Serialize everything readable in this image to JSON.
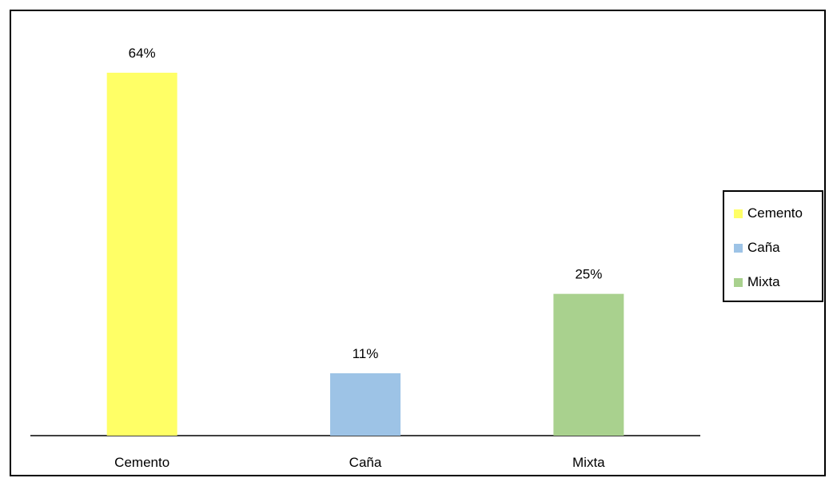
{
  "chart_data": {
    "type": "bar",
    "categories": [
      "Cemento",
      "Caña",
      "Mixta"
    ],
    "values": [
      64,
      11,
      25
    ],
    "data_labels": [
      "64%",
      "11%",
      "25%"
    ],
    "colors": [
      "#FFFF66",
      "#9DC3E6",
      "#A9D18E"
    ],
    "legend": [
      "Cemento",
      "Caña",
      "Mixta"
    ],
    "legend_position": "right",
    "ylim": [
      0,
      70
    ],
    "grid": false
  }
}
